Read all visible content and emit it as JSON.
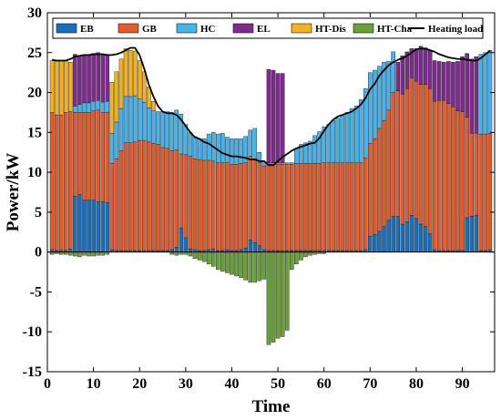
{
  "chart_data": {
    "type": "bar",
    "stacked": true,
    "xlabel": "Time",
    "ylabel": "Power/kW",
    "xlim": [
      0,
      97
    ],
    "ylim": [
      -15,
      30
    ],
    "xticks": [
      0,
      10,
      20,
      30,
      40,
      50,
      60,
      70,
      80,
      90
    ],
    "yticks": [
      -15,
      -10,
      -5,
      0,
      5,
      10,
      15,
      20,
      25,
      30
    ],
    "legend_position": "top",
    "x": [
      1,
      2,
      3,
      4,
      5,
      6,
      7,
      8,
      9,
      10,
      11,
      12,
      13,
      14,
      15,
      16,
      17,
      18,
      19,
      20,
      21,
      22,
      23,
      24,
      25,
      26,
      27,
      28,
      29,
      30,
      31,
      32,
      33,
      34,
      35,
      36,
      37,
      38,
      39,
      40,
      41,
      42,
      43,
      44,
      45,
      46,
      47,
      48,
      49,
      50,
      51,
      52,
      53,
      54,
      55,
      56,
      57,
      58,
      59,
      60,
      61,
      62,
      63,
      64,
      65,
      66,
      67,
      68,
      69,
      70,
      71,
      72,
      73,
      74,
      75,
      76,
      77,
      78,
      79,
      80,
      81,
      82,
      83,
      84,
      85,
      86,
      87,
      88,
      89,
      90,
      91,
      92,
      93,
      94,
      95,
      96
    ],
    "series": [
      {
        "name": "EB",
        "color": "#1a6fba",
        "values": [
          0.3,
          0.2,
          0.2,
          0.2,
          0.4,
          7,
          7.2,
          6.5,
          6.5,
          6.5,
          6.3,
          6.3,
          6.2,
          0.3,
          0.2,
          0.2,
          0.2,
          0.2,
          0.2,
          0.2,
          0.2,
          0.2,
          0.2,
          0.2,
          0.2,
          0.2,
          0.3,
          0.6,
          3,
          1.8,
          0.4,
          0.3,
          0.2,
          0.2,
          0.3,
          0.4,
          0.2,
          0.2,
          0.3,
          0.2,
          0.2,
          0.3,
          0.5,
          1.5,
          1.2,
          0.8,
          0.3,
          0.2,
          0.2,
          0.2,
          0.2,
          0.2,
          0.2,
          0.2,
          0.2,
          0.2,
          0.2,
          0.2,
          0.2,
          0.2,
          0.2,
          0.2,
          0.2,
          0.2,
          0.2,
          0.2,
          0.2,
          0.2,
          0.3,
          2.0,
          2.2,
          2.6,
          3.2,
          4.0,
          4.5,
          4.5,
          3.5,
          3.8,
          4.6,
          4.2,
          3.5,
          3.2,
          2.3,
          0.3,
          0.2,
          0.2,
          0.2,
          0.2,
          0.2,
          0.2,
          4.3,
          4.5,
          4.6,
          0.2,
          0.2,
          0.3
        ]
      },
      {
        "name": "GB",
        "color": "#e05b2e",
        "values": [
          17.2,
          17,
          17,
          17.3,
          17.2,
          10.5,
          10.3,
          11,
          11,
          11.2,
          11.5,
          11.2,
          11.3,
          10.8,
          11.5,
          12.5,
          13.5,
          13.5,
          13.6,
          13.8,
          13.8,
          13.6,
          13.4,
          13.3,
          12.9,
          12.8,
          12.4,
          12.2,
          9.3,
          10.4,
          11.6,
          11.4,
          11.4,
          11.3,
          11.2,
          11,
          11,
          11,
          10.9,
          10.8,
          10.8,
          10.8,
          10.7,
          10.5,
          10.5,
          10.4,
          10.5,
          10.8,
          10.8,
          10.8,
          10.8,
          10.8,
          10.8,
          10.9,
          10.9,
          10.9,
          10.9,
          10.9,
          10.9,
          11.0,
          11,
          11,
          11,
          11,
          11,
          11,
          11,
          11,
          11.5,
          11.6,
          12,
          12.9,
          13.3,
          13.8,
          15.5,
          15.7,
          16.3,
          16.7,
          17.2,
          17.2,
          17.5,
          17.8,
          18.2,
          18.6,
          18.8,
          18.8,
          18.4,
          18,
          17.5,
          17.4,
          12.6,
          10.4,
          10.3,
          14.6,
          14.6,
          14.6
        ]
      },
      {
        "name": "HC",
        "color": "#48b2ea",
        "values": [
          0,
          0,
          0,
          0,
          0,
          0.8,
          1,
          1.2,
          1.2,
          1.2,
          1.2,
          1.3,
          1.4,
          3.8,
          4.6,
          5.3,
          5.8,
          5.8,
          5.8,
          5.2,
          4.8,
          4.3,
          4.1,
          4.1,
          4.5,
          4.6,
          4.8,
          5.0,
          5.0,
          3.8,
          3,
          2.8,
          2.6,
          2.7,
          3.3,
          3.6,
          3.6,
          3.7,
          3.2,
          3.2,
          3.2,
          3.1,
          3.3,
          3.3,
          3.8,
          1.3,
          0.5,
          0.2,
          0.2,
          0.2,
          0.2,
          0.2,
          0.2,
          1.8,
          2.4,
          2.6,
          2.8,
          3.5,
          4,
          4.5,
          4.8,
          5.3,
          5.6,
          5.9,
          6.3,
          6.8,
          7.1,
          7.9,
          8.7,
          8.9,
          8.6,
          7.8,
          7.3,
          6.1,
          5.1,
          0,
          0,
          0,
          0,
          0,
          0,
          0,
          0,
          0,
          0,
          0,
          0,
          0,
          0,
          0,
          0,
          0,
          0,
          10.0,
          10.2,
          10.4
        ]
      },
      {
        "name": "EL",
        "color": "#7e2a8e",
        "values": [
          0,
          0,
          0,
          0,
          0,
          6.5,
          6.1,
          6.0,
          6.0,
          6.0,
          6.0,
          5.9,
          5.7,
          0,
          0,
          0,
          0,
          0,
          0,
          0,
          0,
          0,
          0,
          0,
          0,
          0,
          0,
          0,
          0,
          0,
          0,
          0,
          0,
          0,
          0,
          0,
          0,
          0,
          0,
          0,
          0,
          0,
          0,
          0,
          0,
          0,
          0,
          11.7,
          11.6,
          11.2,
          11.2,
          0,
          0,
          0,
          0,
          0,
          0,
          0,
          0,
          0,
          0,
          0,
          0,
          0,
          0,
          0,
          0,
          0,
          0,
          0,
          0,
          0,
          0,
          0,
          0,
          3.6,
          4.8,
          4.6,
          3.7,
          4.1,
          4.8,
          4.6,
          4.8,
          5.1,
          4.9,
          4.8,
          5.3,
          5.6,
          6.2,
          6.9,
          8,
          9.3,
          9.6,
          0,
          0,
          0
        ]
      },
      {
        "name": "HT-Dis",
        "color": "#f2b224",
        "values": [
          6.5,
          6.7,
          6.8,
          6.5,
          6.2,
          0,
          0,
          0,
          0,
          0,
          0,
          0,
          0,
          6.4,
          6.3,
          6.2,
          6.0,
          5.8,
          5.6,
          4.8,
          3.8,
          2.6,
          1.2,
          0,
          0,
          0,
          0,
          0,
          0,
          0,
          0,
          0,
          0,
          0,
          0,
          0,
          0,
          0,
          0,
          0,
          0,
          0,
          0,
          0,
          0,
          0,
          0,
          0,
          0,
          0,
          0,
          0,
          0,
          0,
          0,
          0,
          0,
          0,
          0,
          0,
          0,
          0,
          0,
          0,
          0,
          0,
          0,
          0,
          0,
          0,
          0,
          0,
          0,
          0,
          0,
          0,
          0,
          0,
          0,
          0,
          0,
          0,
          0,
          0,
          0,
          0,
          0,
          0,
          0,
          0,
          0,
          0,
          0,
          0,
          0,
          0
        ]
      },
      {
        "name": "HT-Cha",
        "color": "#6aa03a",
        "values": [
          -0.3,
          -0.2,
          -0.3,
          -0.3,
          -0.4,
          -0.5,
          -0.6,
          -0.4,
          -0.5,
          -0.5,
          -0.4,
          -0.4,
          -0.3,
          0,
          0,
          0,
          0,
          0,
          0,
          0,
          0,
          0,
          0,
          0,
          0,
          0,
          -0.3,
          -0.4,
          -0.3,
          -0.3,
          -0.5,
          -0.8,
          -1.0,
          -1.2,
          -1.5,
          -1.8,
          -2.2,
          -2.4,
          -2.6,
          -2.8,
          -3.0,
          -3.2,
          -3.5,
          -3.8,
          -3.8,
          -3.6,
          -3.4,
          -11.6,
          -11.3,
          -10.8,
          -10.6,
          -9.8,
          -2.2,
          -1.5,
          -1.0,
          -0.6,
          -0.4,
          -0.3,
          -0.2,
          -0.2,
          0,
          0,
          0,
          0,
          0,
          0,
          0,
          0,
          0,
          0,
          0,
          0,
          0,
          0,
          0,
          0,
          0,
          0,
          0,
          0,
          0,
          0,
          0,
          0,
          0,
          0,
          0,
          0,
          0,
          0,
          0,
          0,
          0,
          0,
          0,
          0
        ]
      }
    ],
    "heating_load": {
      "name": "Heating load",
      "color": "#000000",
      "values": [
        24.1,
        24,
        24,
        24,
        24.2,
        24.5,
        24.6,
        24.7,
        24.7,
        24.8,
        24.8,
        24.8,
        24.7,
        24.7,
        24.8,
        25,
        25.3,
        25.6,
        25.6,
        24.7,
        23.0,
        21.0,
        19.5,
        18.3,
        17.6,
        17.4,
        17.4,
        17.2,
        16.6,
        15.8,
        15.0,
        14.4,
        14.2,
        13.8,
        13.6,
        13.2,
        12.8,
        12.4,
        12.2,
        12.0,
        12.0,
        11.9,
        11.8,
        11.6,
        11.6,
        11.4,
        11.4,
        10.9,
        10.9,
        11.4,
        11.9,
        12.3,
        12.7,
        13.0,
        13.2,
        13.4,
        13.6,
        13.7,
        14.3,
        15.2,
        16.0,
        16.6,
        17.0,
        17.2,
        17.4,
        17.6,
        18.0,
        18.5,
        19.3,
        20.4,
        21.1,
        22.1,
        22.8,
        23.4,
        23.8,
        24.1,
        24.3,
        24.6,
        25.0,
        25.4,
        25.5,
        25.5,
        25.3,
        25.1,
        24.8,
        24.6,
        24.4,
        24.3,
        24.2,
        24.2,
        24.1,
        24.0,
        24.0,
        24.3,
        24.8,
        25.2
      ]
    }
  }
}
